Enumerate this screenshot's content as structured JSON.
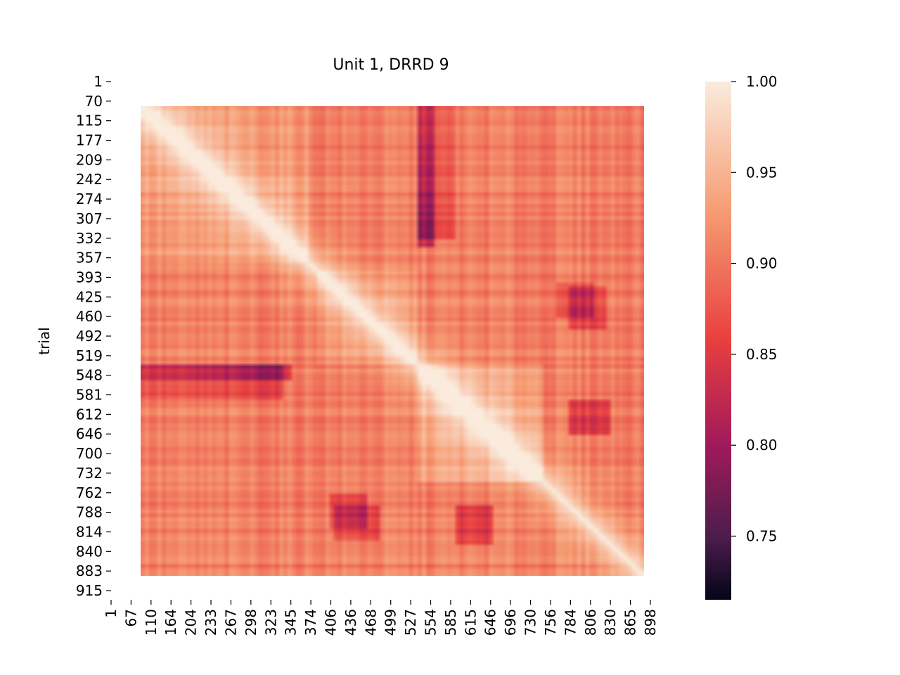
{
  "chart_data": {
    "type": "heatmap",
    "title": "Unit 1, DRRD 9",
    "ylabel": "trial",
    "xlabel": "",
    "y_tick_labels": [
      "1",
      "70",
      "115",
      "177",
      "209",
      "242",
      "274",
      "307",
      "332",
      "357",
      "393",
      "425",
      "460",
      "492",
      "519",
      "548",
      "581",
      "612",
      "646",
      "700",
      "732",
      "762",
      "788",
      "814",
      "840",
      "883",
      "915"
    ],
    "x_tick_labels": [
      "1",
      "67",
      "110",
      "164",
      "204",
      "233",
      "267",
      "298",
      "323",
      "345",
      "374",
      "406",
      "436",
      "468",
      "499",
      "527",
      "554",
      "585",
      "615",
      "646",
      "696",
      "730",
      "756",
      "784",
      "806",
      "830",
      "865",
      "898"
    ],
    "colorbar": {
      "min": 0.715,
      "max": 1.0,
      "ticks": [
        0.75,
        0.8,
        0.85,
        0.9,
        0.95,
        1.0
      ],
      "tick_labels": [
        "0.75",
        "0.80",
        "0.85",
        "0.90",
        "0.95",
        "1.00"
      ],
      "colormap": "rocket",
      "colors": [
        "#03051a",
        "#4c1d4b",
        "#a11a5b",
        "#e83f3f",
        "#f69c73",
        "#faebdd"
      ]
    },
    "matrix_description_values": {
      "diagonal": 1.0,
      "dark_spots": [
        {
          "row_trial": "548",
          "col_trial": "110",
          "value": 0.72
        },
        {
          "row_trial": "115",
          "col_trial": "554",
          "value": 0.74
        },
        {
          "row_trial": "788",
          "col_trial": "436",
          "value": 0.74
        },
        {
          "row_trial": "425",
          "col_trial": "784",
          "value": 0.75
        },
        {
          "row_trial": "788",
          "col_trial": "646",
          "value": 0.79
        }
      ]
    }
  }
}
